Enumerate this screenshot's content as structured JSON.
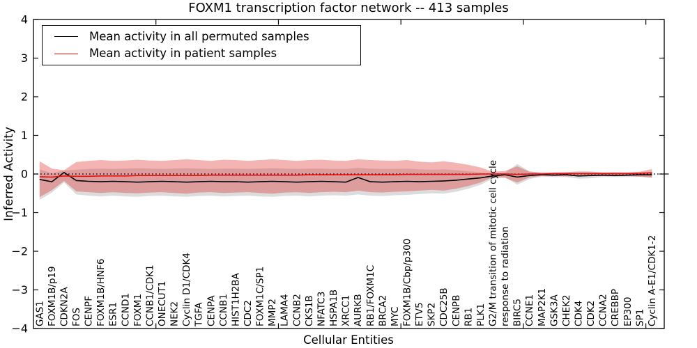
{
  "chart_data": {
    "type": "line",
    "title": "FOXM1 transcription factor network -- 413 samples",
    "xlabel": "Cellular Entities",
    "ylabel": "Inferred Activity",
    "ylim": [
      -4,
      4
    ],
    "y_ticks": [
      4,
      3,
      2,
      1,
      0,
      -1,
      -2,
      -3,
      -4
    ],
    "x_major_tick_positions": [
      10,
      20,
      30,
      40,
      50
    ],
    "grid": false,
    "legend_position": "upper left",
    "zero_line": {
      "y": 0,
      "style": "dotted",
      "color": "#000000"
    },
    "categories": [
      "GAS1",
      "FOXM1B/p19",
      "CDKN2A",
      "FOS",
      "CENPF",
      "FOXM1B/HNF6",
      "ESR1",
      "CCND1",
      "FOXM1",
      "CCNB1/CDK1",
      "ONECUT1",
      "NEK2",
      "Cyclin D1/CDK4",
      "TGFA",
      "CENPA",
      "CCNB1",
      "HIST1H2BA",
      "CDC2",
      "FOXM1C/SP1",
      "MMP2",
      "LAMA4",
      "CCNB2",
      "CKS1B",
      "NFATC3",
      "HSPA1B",
      "XRCC1",
      "AURKB",
      "RB1/FOXM1C",
      "BRCA2",
      "MYC",
      "FOXM1B/Cbp/p300",
      "ETV5",
      "SKP2",
      "CDC25B",
      "CENPB",
      "RB1",
      "PLK1",
      "G2/M transition of mitotic cell cycle",
      "response to radiation",
      "BIRC5",
      "CCNE1",
      "MAP2K1",
      "GSK3A",
      "CHEK2",
      "CDK4",
      "CDK2",
      "CCNA2",
      "CREBBP",
      "EP300",
      "SP1",
      "Cyclin A-E1/CDK1-2"
    ],
    "series": [
      {
        "name": "Mean activity in all permuted samples",
        "color": "#000000",
        "values": [
          -0.14,
          -0.2,
          0.04,
          -0.17,
          -0.19,
          -0.2,
          -0.19,
          -0.2,
          -0.21,
          -0.2,
          -0.19,
          -0.2,
          -0.21,
          -0.2,
          -0.19,
          -0.2,
          -0.2,
          -0.21,
          -0.2,
          -0.19,
          -0.2,
          -0.21,
          -0.2,
          -0.19,
          -0.2,
          -0.21,
          -0.09,
          -0.2,
          -0.21,
          -0.2,
          -0.19,
          -0.2,
          -0.19,
          -0.18,
          -0.16,
          -0.13,
          -0.1,
          -0.05,
          -0.02,
          -0.08,
          -0.04,
          -0.02,
          -0.03,
          -0.02,
          -0.05,
          -0.04,
          -0.03,
          -0.04,
          -0.03,
          -0.02,
          -0.02
        ]
      },
      {
        "name": "Mean activity in patient samples",
        "color": "#ee0d0d",
        "values": [
          -0.07,
          -0.08,
          -0.05,
          -0.06,
          -0.06,
          -0.05,
          -0.05,
          -0.05,
          -0.04,
          -0.04,
          -0.04,
          -0.04,
          -0.04,
          -0.04,
          -0.03,
          -0.03,
          -0.03,
          -0.03,
          -0.03,
          -0.03,
          -0.03,
          -0.03,
          -0.02,
          -0.02,
          -0.02,
          -0.02,
          -0.02,
          -0.02,
          -0.02,
          -0.02,
          -0.01,
          -0.01,
          -0.01,
          -0.01,
          -0.01,
          -0.01,
          0.0,
          0.0,
          0.0,
          -0.01,
          0.0,
          0.0,
          0.01,
          0.01,
          0.01,
          0.01,
          0.01,
          0.01,
          0.01,
          0.02,
          0.03
        ]
      }
    ],
    "bands": [
      {
        "name": "permuted-samples-range",
        "color": "#808080",
        "opacity": 0.28,
        "upper": [
          0.12,
          0.02,
          0.09,
          0.11,
          0.13,
          0.14,
          0.13,
          0.14,
          0.15,
          0.14,
          0.13,
          0.14,
          0.15,
          0.14,
          0.13,
          0.14,
          0.14,
          0.13,
          0.14,
          0.15,
          0.14,
          0.13,
          0.14,
          0.14,
          0.13,
          0.13,
          0.16,
          0.14,
          0.13,
          0.13,
          0.14,
          0.12,
          0.11,
          0.12,
          0.1,
          0.07,
          0.04,
          0.02,
          0.03,
          0.26,
          0.07,
          0.03,
          0.04,
          0.04,
          0.08,
          0.07,
          0.04,
          0.04,
          0.04,
          0.04,
          0.06
        ],
        "lower": [
          -0.67,
          -0.48,
          -0.22,
          -0.53,
          -0.56,
          -0.58,
          -0.56,
          -0.58,
          -0.59,
          -0.57,
          -0.56,
          -0.58,
          -0.59,
          -0.57,
          -0.56,
          -0.58,
          -0.57,
          -0.56,
          -0.58,
          -0.59,
          -0.57,
          -0.56,
          -0.58,
          -0.56,
          -0.55,
          -0.56,
          -0.53,
          -0.56,
          -0.57,
          -0.55,
          -0.54,
          -0.52,
          -0.5,
          -0.51,
          -0.46,
          -0.38,
          -0.28,
          -0.12,
          -0.08,
          -0.28,
          -0.13,
          -0.07,
          -0.08,
          -0.08,
          -0.12,
          -0.11,
          -0.08,
          -0.08,
          -0.08,
          -0.07,
          -0.1
        ]
      },
      {
        "name": "patient-samples-range",
        "color": "#e03030",
        "opacity": 0.36,
        "upper": [
          0.33,
          0.14,
          0.1,
          0.31,
          0.34,
          0.36,
          0.34,
          0.35,
          0.37,
          0.35,
          0.34,
          0.36,
          0.38,
          0.36,
          0.34,
          0.37,
          0.36,
          0.34,
          0.36,
          0.38,
          0.36,
          0.34,
          0.36,
          0.37,
          0.35,
          0.34,
          0.38,
          0.36,
          0.35,
          0.34,
          0.36,
          0.32,
          0.3,
          0.33,
          0.29,
          0.24,
          0.17,
          0.06,
          0.08,
          0.2,
          0.06,
          0.04,
          0.04,
          0.05,
          0.05,
          0.05,
          0.04,
          0.05,
          0.04,
          0.06,
          0.13
        ],
        "lower": [
          -0.6,
          -0.42,
          -0.18,
          -0.45,
          -0.47,
          -0.49,
          -0.47,
          -0.49,
          -0.5,
          -0.48,
          -0.47,
          -0.49,
          -0.51,
          -0.48,
          -0.47,
          -0.49,
          -0.48,
          -0.47,
          -0.49,
          -0.51,
          -0.48,
          -0.47,
          -0.49,
          -0.47,
          -0.46,
          -0.47,
          -0.43,
          -0.47,
          -0.48,
          -0.46,
          -0.45,
          -0.43,
          -0.41,
          -0.43,
          -0.38,
          -0.31,
          -0.22,
          -0.08,
          -0.1,
          -0.22,
          -0.09,
          -0.05,
          -0.05,
          -0.06,
          -0.06,
          -0.06,
          -0.05,
          -0.06,
          -0.05,
          -0.07,
          -0.09
        ]
      }
    ]
  }
}
